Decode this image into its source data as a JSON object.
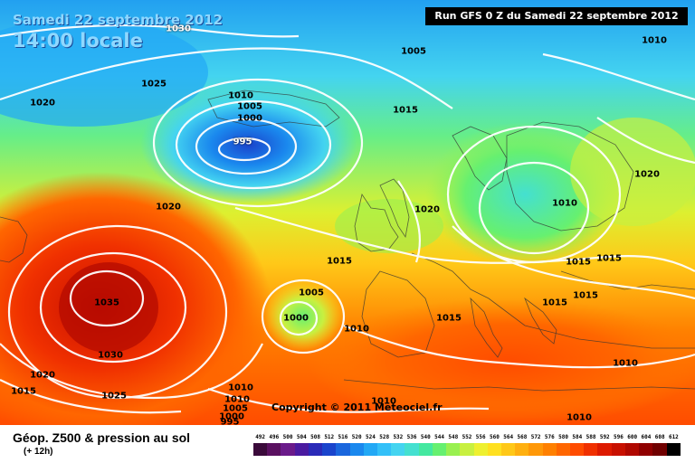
{
  "header": {
    "date_title": "Samedi 22 septembre 2012",
    "time_title": "14:00 locale",
    "run_info": "Run GFS 0 Z du Samedi 22 septembre 2012"
  },
  "copyright": "Copyright © 2011 Meteociel.fr",
  "legend": {
    "title": "Géop. Z500 & pression au sol",
    "subtitle": "(+ 12h)",
    "scale_values": [
      "492",
      "496",
      "500",
      "504",
      "508",
      "512",
      "516",
      "520",
      "524",
      "528",
      "532",
      "536",
      "540",
      "544",
      "548",
      "552",
      "556",
      "560",
      "564",
      "568",
      "572",
      "576",
      "580",
      "584",
      "588",
      "592",
      "596",
      "600",
      "604",
      "608",
      "612"
    ],
    "scale_colors": [
      "#3a0a3a",
      "#5a1060",
      "#6a1a8a",
      "#4a1aa0",
      "#2a2ab8",
      "#1a44cc",
      "#1a66dd",
      "#1a88ee",
      "#22a8f5",
      "#33c0f8",
      "#44d4f0",
      "#44e0d0",
      "#44e8a0",
      "#66f070",
      "#99f050",
      "#c8f040",
      "#eef030",
      "#ffe020",
      "#ffc818",
      "#ffb010",
      "#ff9808",
      "#ff8000",
      "#ff6600",
      "#ff4c00",
      "#f03000",
      "#dd1a00",
      "#c81000",
      "#b00800",
      "#900000",
      "#700000",
      "#000000"
    ]
  },
  "isobars": [
    {
      "value": "1030",
      "tone": "light"
    },
    {
      "value": "1025",
      "tone": "dark"
    },
    {
      "value": "1020",
      "tone": "dark"
    },
    {
      "value": "1010",
      "tone": "dark"
    },
    {
      "value": "1005",
      "tone": "dark"
    },
    {
      "value": "1000",
      "tone": "dark"
    },
    {
      "value": "995",
      "tone": "light"
    },
    {
      "value": "1005",
      "tone": "dark"
    },
    {
      "value": "1015",
      "tone": "dark"
    },
    {
      "value": "1010",
      "tone": "dark"
    },
    {
      "value": "1020",
      "tone": "dark"
    },
    {
      "value": "1010",
      "tone": "dark"
    },
    {
      "value": "1020",
      "tone": "dark"
    },
    {
      "value": "1020",
      "tone": "dark"
    },
    {
      "value": "1015",
      "tone": "dark"
    },
    {
      "value": "1035",
      "tone": "dark"
    },
    {
      "value": "1030",
      "tone": "dark"
    },
    {
      "value": "1025",
      "tone": "dark"
    },
    {
      "value": "1020",
      "tone": "dark"
    },
    {
      "value": "1015",
      "tone": "dark"
    },
    {
      "value": "1005",
      "tone": "dark"
    },
    {
      "value": "1000",
      "tone": "dark"
    },
    {
      "value": "1010",
      "tone": "dark"
    },
    {
      "value": "1015",
      "tone": "dark"
    },
    {
      "value": "1015",
      "tone": "dark"
    },
    {
      "value": "1015",
      "tone": "dark"
    },
    {
      "value": "1015",
      "tone": "dark"
    },
    {
      "value": "1015",
      "tone": "dark"
    },
    {
      "value": "1010",
      "tone": "dark"
    },
    {
      "value": "1010",
      "tone": "dark"
    },
    {
      "value": "1010",
      "tone": "dark"
    },
    {
      "value": "1010",
      "tone": "dark"
    },
    {
      "value": "1005",
      "tone": "dark"
    },
    {
      "value": "1000",
      "tone": "dark"
    },
    {
      "value": "995",
      "tone": "dark"
    },
    {
      "value": "1010",
      "tone": "dark"
    }
  ]
}
